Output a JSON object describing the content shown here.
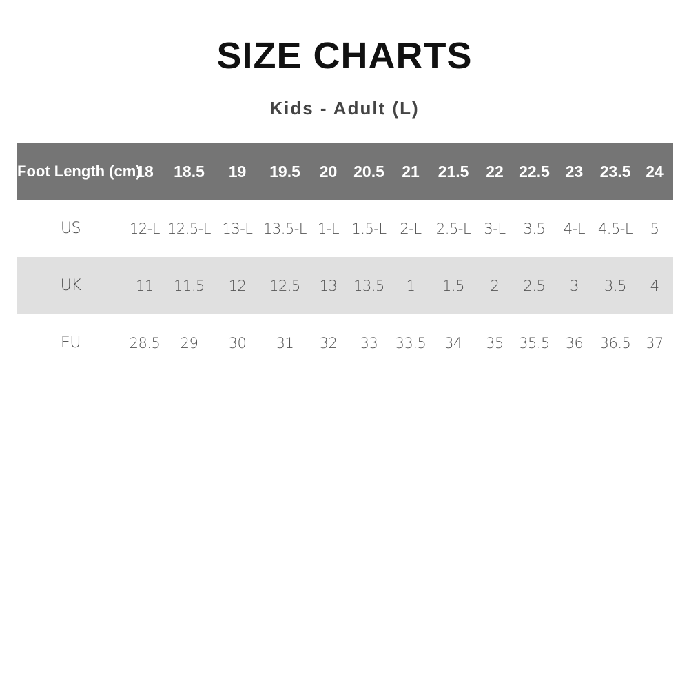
{
  "title": "SIZE CHARTS",
  "subtitle": "Kids - Adult (L)",
  "table": {
    "header_label": "Foot Length (cm)",
    "foot_lengths": [
      "18",
      "18.5",
      "19",
      "19.5",
      "20",
      "20.5",
      "21",
      "21.5",
      "22",
      "22.5",
      "23",
      "23.5",
      "24"
    ],
    "rows": [
      {
        "label": "US",
        "values": [
          "12-L",
          "12.5-L",
          "13-L",
          "13.5-L",
          "1-L",
          "1.5-L",
          "2-L",
          "2.5-L",
          "3-L",
          "3.5",
          "4-L",
          "4.5-L",
          "5"
        ]
      },
      {
        "label": "UK",
        "values": [
          "11",
          "11.5",
          "12",
          "12.5",
          "13",
          "13.5",
          "1",
          "1.5",
          "2",
          "2.5",
          "3",
          "3.5",
          "4"
        ]
      },
      {
        "label": "EU",
        "values": [
          "28.5",
          "29",
          "30",
          "31",
          "32",
          "33",
          "33.5",
          "34",
          "35",
          "35.5",
          "36",
          "36.5",
          "37"
        ]
      }
    ]
  },
  "colors": {
    "header_bg": "#757575",
    "alt_row_bg": "#e0e0e0"
  }
}
